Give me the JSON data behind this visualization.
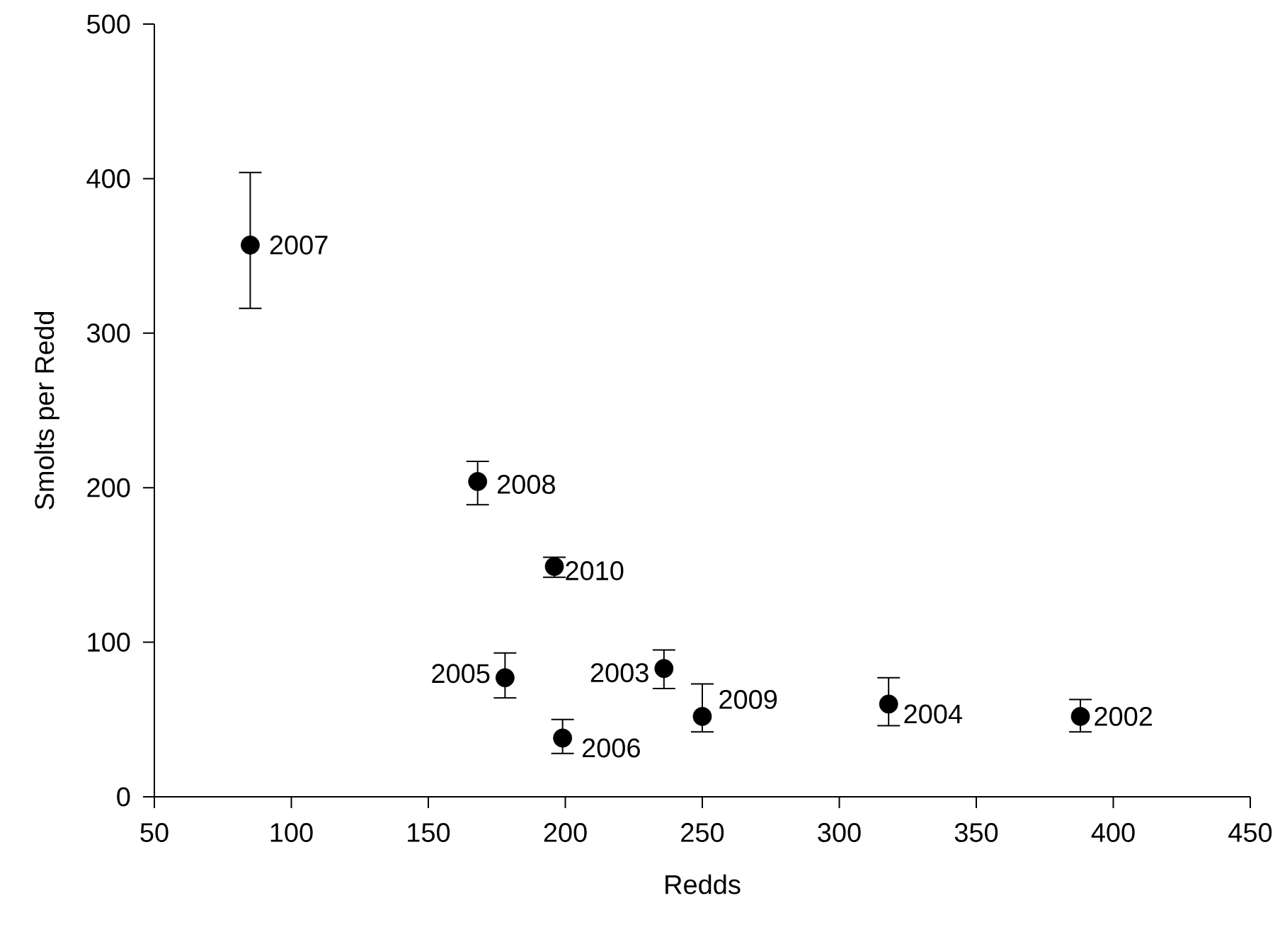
{
  "chart_data": {
    "type": "scatter",
    "xlabel": "Redds",
    "ylabel": "Smolts per Redd",
    "x": [
      388,
      236,
      318,
      178,
      199,
      85,
      168,
      250,
      196
    ],
    "values": [
      52,
      83,
      60,
      77,
      38,
      357,
      204,
      52,
      149
    ],
    "errors": [
      [
        42,
        63
      ],
      [
        70,
        95
      ],
      [
        46,
        77
      ],
      [
        64,
        93
      ],
      [
        28,
        50
      ],
      [
        316,
        404
      ],
      [
        189,
        217
      ],
      [
        42,
        73
      ],
      [
        142,
        155
      ]
    ],
    "color": "#000000",
    "marker": "circle",
    "grid": false,
    "xlim": [
      50,
      450
    ],
    "xticks": [
      50,
      100,
      150,
      200,
      250,
      300,
      350,
      400,
      450
    ],
    "ylim": [
      0,
      500
    ],
    "yticks": [
      0,
      100,
      200,
      300,
      400,
      500
    ],
    "annotations": [
      {
        "text": "2002",
        "x": 388,
        "y": 52
      },
      {
        "text": "2003",
        "x": 236,
        "y": 83
      },
      {
        "text": "2004",
        "x": 318,
        "y": 60
      },
      {
        "text": "2005",
        "x": 178,
        "y": 77
      },
      {
        "text": "2006",
        "x": 199,
        "y": 38
      },
      {
        "text": "2007",
        "x": 85,
        "y": 357
      },
      {
        "text": "2008",
        "x": 168,
        "y": 204
      },
      {
        "text": "2009",
        "x": 250,
        "y": 52
      },
      {
        "text": "2010",
        "x": 196,
        "y": 149
      }
    ]
  }
}
